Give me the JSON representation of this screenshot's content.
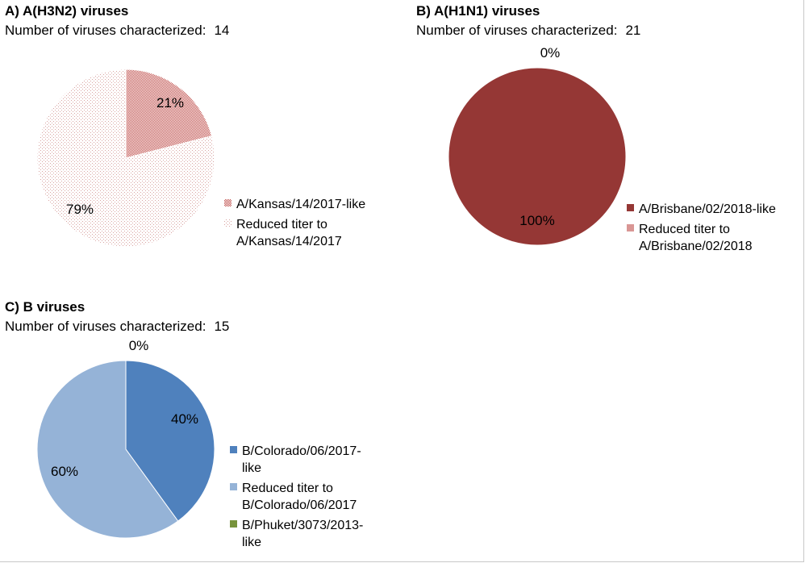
{
  "panels": [
    {
      "title": "A) A(H3N2) viruses",
      "count_label": "Number of viruses characterized:",
      "count_value": "14"
    },
    {
      "title": "B) A(H1N1) viruses",
      "count_label": "Number of viruses characterized:",
      "count_value": "21"
    },
    {
      "title": "C) B viruses",
      "count_label": "Number of viruses characterized:",
      "count_value": "15"
    }
  ],
  "chart_data": [
    {
      "type": "pie",
      "title": "A) A(H3N2) viruses",
      "categories": [
        "A/Kansas/14/2017-like",
        "Reduced titer to A/Kansas/14/2017"
      ],
      "values": [
        21,
        79
      ],
      "data_labels": [
        "21%",
        "79%"
      ],
      "colors": [
        "#d9a6a8",
        "#ecd2d3"
      ],
      "patterns": [
        "crosshatch",
        "dots"
      ],
      "legend_lines": [
        [
          "A/Kansas/14/2017-like"
        ],
        [
          "Reduced titer to",
          "A/Kansas/14/2017"
        ]
      ],
      "legend_position": "right"
    },
    {
      "type": "pie",
      "title": "B) A(H1N1) viruses",
      "categories": [
        "A/Brisbane/02/2018-like",
        "Reduced titer to A/Brisbane/02/2018"
      ],
      "values": [
        100,
        0
      ],
      "data_labels": [
        "100%",
        "0%"
      ],
      "colors": [
        "#953735",
        "#d99694"
      ],
      "legend_lines": [
        [
          "A/Brisbane/02/2018-like"
        ],
        [
          "Reduced titer to",
          "A/Brisbane/02/2018"
        ]
      ],
      "legend_position": "right"
    },
    {
      "type": "pie",
      "title": "C) B viruses",
      "categories": [
        "B/Colorado/06/2017-like",
        "Reduced titer to B/Colorado/06/2017",
        "B/Phuket/3073/2013-like"
      ],
      "values": [
        40,
        60,
        0
      ],
      "data_labels": [
        "40%",
        "60%",
        "0%"
      ],
      "colors": [
        "#4f81bd",
        "#95b3d7",
        "#77933c"
      ],
      "legend_lines": [
        [
          "B/Colorado/06/2017-",
          "like"
        ],
        [
          "Reduced titer to",
          "B/Colorado/06/2017"
        ],
        [
          "B/Phuket/3073/2013-",
          "like"
        ]
      ],
      "legend_position": "right"
    }
  ]
}
